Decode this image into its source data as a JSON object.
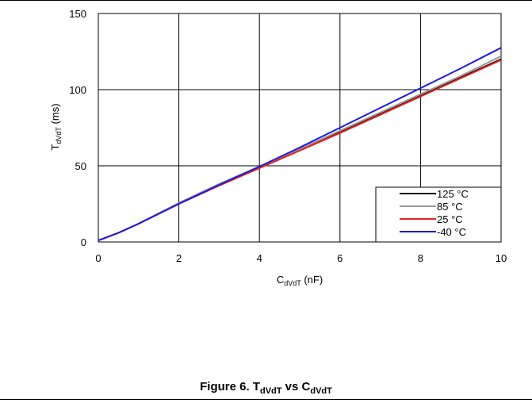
{
  "chart_data": {
    "type": "line",
    "title": "",
    "xlabel": {
      "main": "C",
      "sub": "dVdT",
      "unit": " (nF)"
    },
    "ylabel": {
      "main": "T",
      "sub": "dVdT",
      "unit": " (ms)"
    },
    "xlim": [
      0,
      10
    ],
    "ylim": [
      0,
      150
    ],
    "xticks": [
      "0",
      "2",
      "4",
      "6",
      "8",
      "10"
    ],
    "yticks": [
      "0",
      "50",
      "100",
      "150"
    ],
    "grid": true,
    "legend_position": "bottom-right",
    "x": [
      0,
      0.5,
      1,
      2,
      3,
      4,
      5,
      6,
      7,
      8,
      9,
      10
    ],
    "series": [
      {
        "name": "125 °C",
        "color": "#000000",
        "values": [
          1,
          6,
          12,
          25.5,
          38,
          49.5,
          61,
          72,
          84,
          96,
          108,
          120
        ]
      },
      {
        "name": "85 °C",
        "color": "#999999",
        "values": [
          1,
          6,
          12,
          25.5,
          38,
          49.5,
          61,
          73,
          85,
          97,
          109,
          122
        ]
      },
      {
        "name": "25 °C",
        "color": "#e8201c",
        "values": [
          1,
          6,
          12,
          25,
          37,
          48.5,
          60,
          71.5,
          83.5,
          95.5,
          107.5,
          119.5
        ]
      },
      {
        "name": "-40 °C",
        "color": "#1a1ae0",
        "values": [
          1,
          6,
          12,
          25,
          37.5,
          49.5,
          62,
          75,
          88,
          101,
          114,
          127.5
        ]
      }
    ]
  },
  "caption": {
    "prefix": "Figure 6. T",
    "sub1": "dVdT",
    "middle": " vs C",
    "sub2": "dVdT"
  }
}
